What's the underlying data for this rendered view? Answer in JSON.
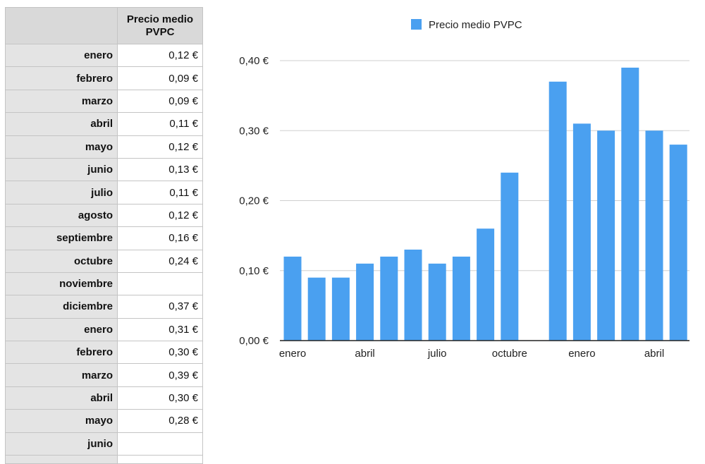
{
  "table": {
    "column_header": "Precio medio PVPC",
    "rows": [
      {
        "label": "enero",
        "value": "0,12 €"
      },
      {
        "label": "febrero",
        "value": "0,09 €"
      },
      {
        "label": "marzo",
        "value": "0,09 €"
      },
      {
        "label": "abril",
        "value": "0,11 €"
      },
      {
        "label": "mayo",
        "value": "0,12 €"
      },
      {
        "label": "junio",
        "value": "0,13 €"
      },
      {
        "label": "julio",
        "value": "0,11 €"
      },
      {
        "label": "agosto",
        "value": "0,12 €"
      },
      {
        "label": "septiembre",
        "value": "0,16 €"
      },
      {
        "label": "octubre",
        "value": "0,24 €"
      },
      {
        "label": "noviembre",
        "value": ""
      },
      {
        "label": "diciembre",
        "value": "0,37 €"
      },
      {
        "label": "enero",
        "value": "0,31 €"
      },
      {
        "label": "febrero",
        "value": "0,30 €"
      },
      {
        "label": "marzo",
        "value": "0,39 €"
      },
      {
        "label": "abril",
        "value": "0,30 €"
      },
      {
        "label": "mayo",
        "value": "0,28 €"
      },
      {
        "label": "junio",
        "value": ""
      }
    ]
  },
  "chart_data": {
    "type": "bar",
    "categories": [
      "enero",
      "febrero",
      "marzo",
      "abril",
      "mayo",
      "junio",
      "julio",
      "agosto",
      "septiembre",
      "octubre",
      "noviembre",
      "diciembre",
      "enero",
      "febrero",
      "marzo",
      "abril",
      "mayo",
      "junio"
    ],
    "series": [
      {
        "name": "Precio medio PVPC",
        "values": [
          0.12,
          0.09,
          0.09,
          0.11,
          0.12,
          0.13,
          0.11,
          0.12,
          0.16,
          0.24,
          null,
          0.37,
          0.31,
          0.3,
          0.39,
          0.3,
          0.28,
          null
        ]
      }
    ],
    "x_tick_labels": [
      "enero",
      "abril",
      "julio",
      "octubre",
      "enero",
      "abril"
    ],
    "y_tick_labels": [
      "0,00 €",
      "0,10 €",
      "0,20 €",
      "0,30 €",
      "0,40 €"
    ],
    "y_ticks": [
      0,
      0.1,
      0.2,
      0.3,
      0.4
    ],
    "ylim": [
      0,
      0.4
    ],
    "legend_position": "top",
    "grid": true,
    "bar_color": "#4aa0f0",
    "grid_color": "#cfcfcf",
    "axis_color": "#222222"
  }
}
